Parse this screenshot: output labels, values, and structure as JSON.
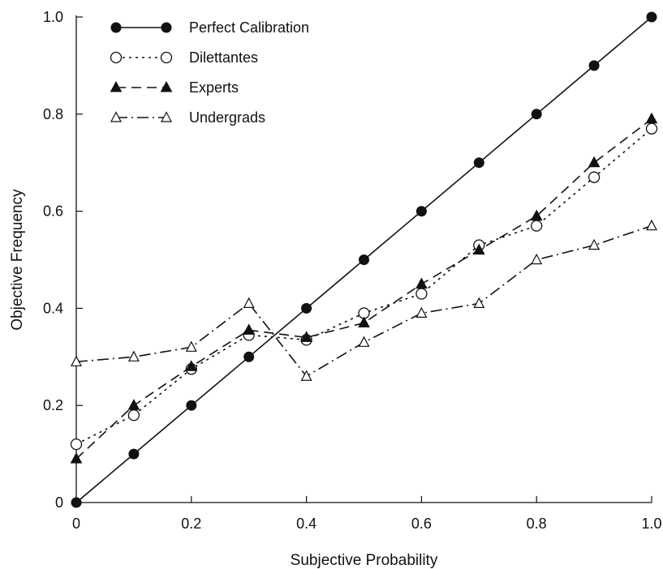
{
  "chart_data": {
    "type": "line",
    "xlabel": "Subjective Probability",
    "ylabel": "Objective Frequency",
    "xlim": [
      0,
      1.0
    ],
    "ylim": [
      0,
      1.0
    ],
    "x_ticks": [
      "0",
      "0.2",
      "0.4",
      "0.6",
      "0.8",
      "1.0"
    ],
    "y_ticks": [
      "0",
      "0.2",
      "0.4",
      "0.6",
      "0.8",
      "1.0"
    ],
    "grid": false,
    "legend_position": "top-left",
    "x": [
      0,
      0.1,
      0.2,
      0.3,
      0.4,
      0.5,
      0.6,
      0.7,
      0.8,
      0.9,
      1.0
    ],
    "series": [
      {
        "name": "Perfect Calibration",
        "marker": "filled-circle",
        "line": "solid",
        "values": [
          0,
          0.1,
          0.2,
          0.3,
          0.4,
          0.5,
          0.6,
          0.7,
          0.8,
          0.9,
          1.0
        ]
      },
      {
        "name": "Dilettantes",
        "marker": "open-circle",
        "line": "dotted",
        "values": [
          0.12,
          0.18,
          0.275,
          0.345,
          0.335,
          0.39,
          0.43,
          0.53,
          0.57,
          0.67,
          0.77
        ]
      },
      {
        "name": "Experts",
        "marker": "filled-triangle",
        "line": "dashed",
        "values": [
          0.09,
          0.2,
          0.28,
          0.355,
          0.34,
          0.37,
          0.45,
          0.52,
          0.59,
          0.7,
          0.79
        ]
      },
      {
        "name": "Undergrads",
        "marker": "open-triangle",
        "line": "dash-dot",
        "values": [
          0.29,
          0.3,
          0.32,
          0.41,
          0.26,
          0.33,
          0.39,
          0.41,
          0.5,
          0.53,
          0.57
        ]
      }
    ]
  }
}
